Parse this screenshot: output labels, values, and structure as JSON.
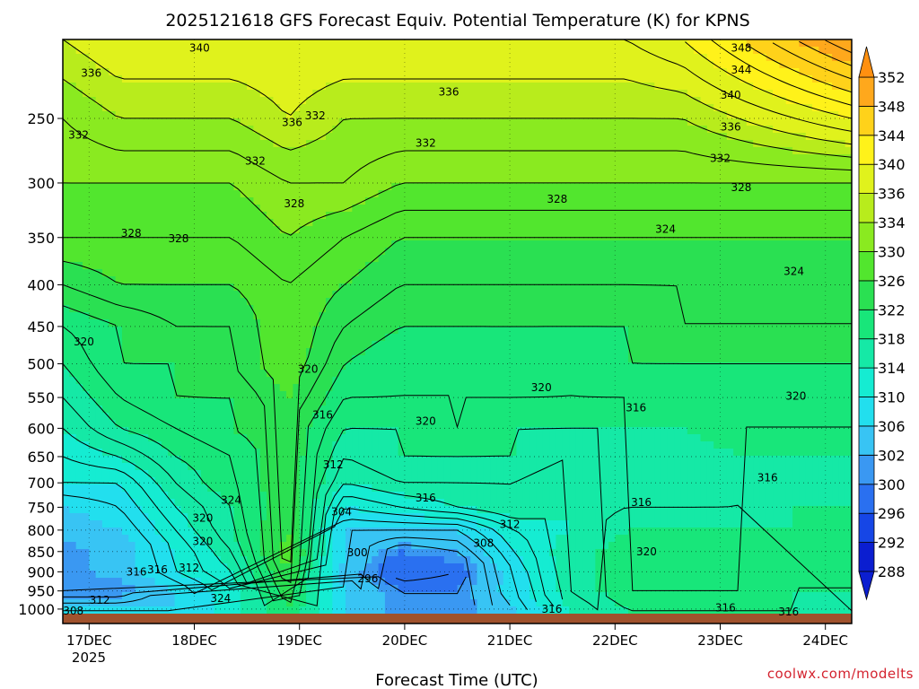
{
  "chart_data": {
    "type": "heatmap",
    "title": "2025121618 GFS Forecast Equiv. Potential Temperature (K) for KPNS",
    "xlabel": "Forecast Time (UTC)",
    "ylabel": "",
    "credit": "coolwx.com/modelts",
    "x_ticks": [
      "17DEC",
      "18DEC",
      "19DEC",
      "20DEC",
      "21DEC",
      "22DEC",
      "23DEC",
      "24DEC"
    ],
    "x_year_label": "2025",
    "y_ticks": [
      250,
      300,
      350,
      400,
      450,
      500,
      550,
      600,
      650,
      700,
      750,
      800,
      850,
      900,
      950,
      1000
    ],
    "y_scale": "log",
    "y_range": [
      200,
      1013
    ],
    "x_range_days": [
      16.75,
      24.25
    ],
    "grid": true,
    "colorbar": {
      "levels": [
        288,
        292,
        296,
        300,
        302,
        306,
        310,
        314,
        318,
        322,
        326,
        330,
        334,
        336,
        340,
        344,
        348,
        352
      ],
      "colors": [
        "#0b1ed0",
        "#1646e6",
        "#2a70f0",
        "#3a98f2",
        "#38c4f4",
        "#22dfee",
        "#15ecd2",
        "#15e9a6",
        "#18e67a",
        "#2ae052",
        "#52e62e",
        "#8aea20",
        "#b8ec1c",
        "#e0f21c",
        "#fff21a",
        "#ffd21a",
        "#ffa81c",
        "#ff9010"
      ]
    },
    "series": [
      {
        "name": "1000",
        "values": [
          306,
          306,
          306,
          312,
          322,
          306,
          300,
          300,
          306,
          314,
          318,
          318,
          318,
          318,
          316
        ]
      },
      {
        "name": "950",
        "values": [
          300,
          300,
          306,
          312,
          324,
          306,
          300,
          300,
          308,
          316,
          320,
          320,
          320,
          318,
          318
        ]
      },
      {
        "name": "900",
        "values": [
          300,
          304,
          310,
          314,
          326,
          304,
          296,
          298,
          308,
          316,
          320,
          320,
          320,
          318,
          318
        ]
      },
      {
        "name": "850",
        "values": [
          300,
          304,
          310,
          316,
          328,
          306,
          300,
          302,
          310,
          316,
          320,
          320,
          320,
          318,
          318
        ]
      },
      {
        "name": "800",
        "values": [
          304,
          306,
          312,
          318,
          326,
          306,
          306,
          306,
          312,
          314,
          318,
          318,
          318,
          318,
          318
        ]
      },
      {
        "name": "750",
        "values": [
          306,
          308,
          314,
          318,
          324,
          310,
          312,
          314,
          316,
          314,
          316,
          316,
          316,
          318,
          318
        ]
      },
      {
        "name": "700",
        "values": [
          310,
          310,
          316,
          320,
          324,
          314,
          316,
          316,
          316,
          314,
          314,
          314,
          316,
          316,
          316
        ]
      },
      {
        "name": "650",
        "values": [
          312,
          314,
          318,
          320,
          324,
          316,
          318,
          318,
          318,
          316,
          316,
          316,
          318,
          318,
          318
        ]
      },
      {
        "name": "600",
        "values": [
          314,
          318,
          320,
          322,
          324,
          318,
          318,
          320,
          318,
          318,
          318,
          318,
          320,
          320,
          320
        ]
      },
      {
        "name": "550",
        "values": [
          316,
          320,
          322,
          322,
          326,
          320,
          320,
          320,
          320,
          320,
          320,
          320,
          320,
          320,
          320
        ]
      },
      {
        "name": "500",
        "values": [
          318,
          322,
          322,
          324,
          328,
          322,
          320,
          320,
          322,
          320,
          322,
          322,
          322,
          322,
          322
        ]
      },
      {
        "name": "450",
        "values": [
          320,
          322,
          324,
          324,
          328,
          324,
          322,
          322,
          322,
          322,
          322,
          324,
          324,
          324,
          324
        ]
      },
      {
        "name": "400",
        "values": [
          324,
          326,
          326,
          326,
          328,
          326,
          324,
          324,
          324,
          324,
          324,
          324,
          324,
          324,
          324
        ]
      },
      {
        "name": "350",
        "values": [
          328,
          328,
          328,
          328,
          330,
          328,
          326,
          326,
          326,
          326,
          326,
          326,
          326,
          326,
          326
        ]
      },
      {
        "name": "300",
        "values": [
          330,
          330,
          330,
          330,
          332,
          332,
          330,
          330,
          330,
          330,
          330,
          330,
          330,
          330,
          330
        ]
      },
      {
        "name": "250",
        "values": [
          332,
          334,
          334,
          334,
          336,
          334,
          334,
          334,
          334,
          334,
          334,
          334,
          336,
          338,
          340
        ]
      },
      {
        "name": "200",
        "values": [
          336,
          338,
          338,
          338,
          338,
          338,
          338,
          338,
          338,
          338,
          338,
          340,
          344,
          348,
          352
        ]
      }
    ],
    "contour_labels": [
      {
        "text": "340",
        "day": 18.05,
        "p": 205
      },
      {
        "text": "336",
        "day": 17.02,
        "p": 220
      },
      {
        "text": "336",
        "day": 18.93,
        "p": 253
      },
      {
        "text": "336",
        "day": 20.42,
        "p": 232
      },
      {
        "text": "336",
        "day": 23.1,
        "p": 256
      },
      {
        "text": "348",
        "day": 23.2,
        "p": 205
      },
      {
        "text": "344",
        "day": 23.2,
        "p": 218
      },
      {
        "text": "340",
        "day": 23.1,
        "p": 234
      },
      {
        "text": "332",
        "day": 16.9,
        "p": 262
      },
      {
        "text": "332",
        "day": 18.58,
        "p": 282
      },
      {
        "text": "332",
        "day": 19.15,
        "p": 248
      },
      {
        "text": "332",
        "day": 20.2,
        "p": 268
      },
      {
        "text": "332",
        "day": 23.0,
        "p": 280
      },
      {
        "text": "328",
        "day": 18.95,
        "p": 318
      },
      {
        "text": "328",
        "day": 21.45,
        "p": 314
      },
      {
        "text": "328",
        "day": 23.2,
        "p": 304
      },
      {
        "text": "328",
        "day": 17.4,
        "p": 346
      },
      {
        "text": "328",
        "day": 17.85,
        "p": 351
      },
      {
        "text": "324",
        "day": 22.48,
        "p": 342
      },
      {
        "text": "324",
        "day": 23.7,
        "p": 385
      },
      {
        "text": "320",
        "day": 16.95,
        "p": 470
      },
      {
        "text": "320",
        "day": 19.08,
        "p": 508
      },
      {
        "text": "320",
        "day": 21.3,
        "p": 535
      },
      {
        "text": "320",
        "day": 23.72,
        "p": 548
      },
      {
        "text": "320",
        "day": 20.2,
        "p": 588
      },
      {
        "text": "316",
        "day": 19.22,
        "p": 578
      },
      {
        "text": "316",
        "day": 22.2,
        "p": 566
      },
      {
        "text": "316",
        "day": 23.45,
        "p": 690
      },
      {
        "text": "316",
        "day": 20.2,
        "p": 730
      },
      {
        "text": "316",
        "day": 22.25,
        "p": 740
      },
      {
        "text": "312",
        "day": 19.32,
        "p": 665
      },
      {
        "text": "312",
        "day": 21.0,
        "p": 787
      },
      {
        "text": "308",
        "day": 20.75,
        "p": 830
      },
      {
        "text": "304",
        "day": 19.4,
        "p": 760
      },
      {
        "text": "300",
        "day": 19.55,
        "p": 853
      },
      {
        "text": "296",
        "day": 19.65,
        "p": 918
      },
      {
        "text": "324",
        "day": 18.35,
        "p": 735
      },
      {
        "text": "320",
        "day": 18.08,
        "p": 773
      },
      {
        "text": "320",
        "day": 18.08,
        "p": 826
      },
      {
        "text": "320",
        "day": 22.3,
        "p": 850
      },
      {
        "text": "312",
        "day": 17.95,
        "p": 890
      },
      {
        "text": "316",
        "day": 17.45,
        "p": 900
      },
      {
        "text": "316",
        "day": 17.65,
        "p": 895
      },
      {
        "text": "312",
        "day": 17.1,
        "p": 975
      },
      {
        "text": "308",
        "day": 16.85,
        "p": 1005
      },
      {
        "text": "324",
        "day": 18.25,
        "p": 970
      },
      {
        "text": "316",
        "day": 21.4,
        "p": 1000
      },
      {
        "text": "316",
        "day": 23.05,
        "p": 997
      },
      {
        "text": "316",
        "day": 23.65,
        "p": 1008
      }
    ]
  }
}
